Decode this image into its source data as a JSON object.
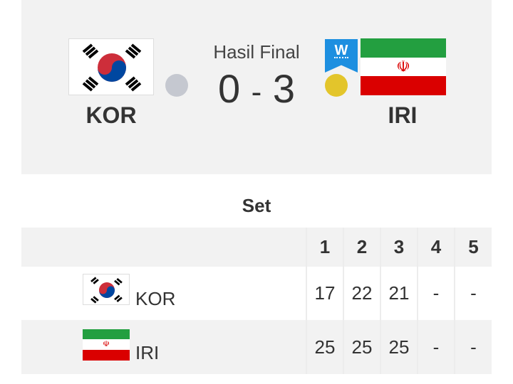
{
  "header": {
    "title": "Hasil Final",
    "home_score": "0",
    "separator": "-",
    "away_score": "3",
    "winner_badge": "W"
  },
  "home": {
    "code": "KOR",
    "flag": "south-korea-flag",
    "indicator_color": "#c5c8d0"
  },
  "away": {
    "code": "IRI",
    "flag": "iran-flag",
    "indicator_color": "#e3c52b"
  },
  "sets": {
    "title": "Set",
    "columns": [
      "1",
      "2",
      "3",
      "4",
      "5"
    ],
    "rows": [
      {
        "team": "KOR",
        "scores": [
          "17",
          "22",
          "21",
          "-",
          "-"
        ]
      },
      {
        "team": "IRI",
        "scores": [
          "25",
          "25",
          "25",
          "-",
          "-"
        ]
      }
    ]
  },
  "colors": {
    "badge": "#1d8fe0",
    "panel": "#f2f2f2"
  }
}
